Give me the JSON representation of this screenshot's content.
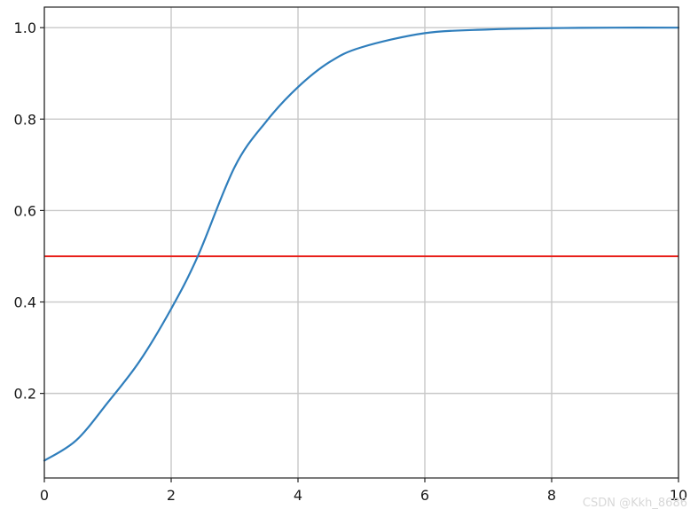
{
  "chart_data": {
    "type": "line",
    "title": "",
    "xlabel": "",
    "ylabel": "",
    "xlim": [
      0,
      10
    ],
    "ylim": [
      0.015,
      1.045
    ],
    "xticks": [
      0,
      2,
      4,
      6,
      8,
      10
    ],
    "xtick_labels": [
      "0",
      "2",
      "4",
      "6",
      "8",
      "10"
    ],
    "yticks": [
      0.2,
      0.4,
      0.6,
      0.8,
      1.0
    ],
    "ytick_labels": [
      "0.2",
      "0.4",
      "0.6",
      "0.8",
      "1.0"
    ],
    "grid": true,
    "series": [
      {
        "color": "#2f7ebc",
        "x": [
          0,
          0.5,
          1,
          1.5,
          2,
          2.42,
          3,
          3.5,
          4,
          4.5,
          5,
          6,
          7,
          8,
          9,
          10
        ],
        "y": [
          0.053,
          0.097,
          0.18,
          0.27,
          0.385,
          0.5,
          0.695,
          0.795,
          0.87,
          0.925,
          0.957,
          0.988,
          0.996,
          0.999,
          1.0,
          1.0
        ]
      }
    ],
    "hlines": [
      {
        "y": 0.5,
        "color": "#e8201a"
      }
    ],
    "spine_color": "#222222",
    "grid_color": "#c8c8c8"
  },
  "watermark": "CSDN @Kkh_8686"
}
